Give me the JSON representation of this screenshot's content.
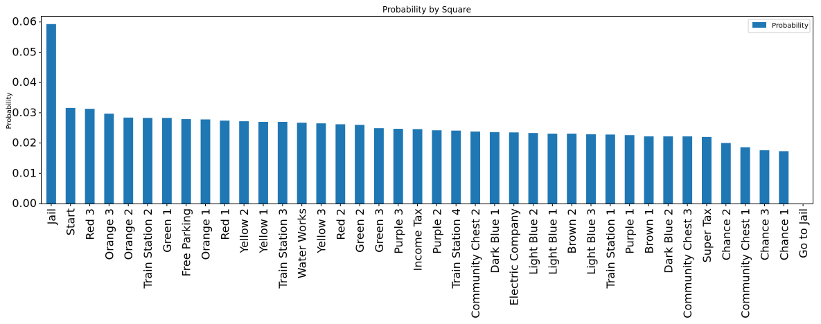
{
  "chart_data": {
    "type": "bar",
    "title": "Probability by Square",
    "xlabel": "",
    "ylabel": "Probability",
    "ylim": [
      0,
      0.062
    ],
    "yticks": [
      "0.00",
      "0.01",
      "0.02",
      "0.03",
      "0.04",
      "0.05",
      "0.06"
    ],
    "legend": {
      "position": "top-right",
      "entries": [
        "Probability"
      ]
    },
    "color": "#1f77b4",
    "grid": false,
    "categories": [
      "Jail",
      "Start",
      "Red 3",
      "Orange 3",
      "Orange 2",
      "Train Station 2",
      "Green 1",
      "Free Parking",
      "Orange 1",
      "Red 1",
      "Yellow 2",
      "Yellow 1",
      "Train Station 3",
      "Water Works",
      "Yellow 3",
      "Red 2",
      "Green 2",
      "Green 3",
      "Purple 3",
      "Income Tax",
      "Purple 2",
      "Train Station 4",
      "Community Chest 2",
      "Dark Blue 1",
      "Electric Company",
      "Light Blue 2",
      "Light Blue 1",
      "Brown 2",
      "Light Blue 3",
      "Train Station 1",
      "Purple 1",
      "Brown 1",
      "Dark Blue 2",
      "Community Chest 3",
      "Super Tax",
      "Chance 2",
      "Community Chest 1",
      "Chance 3",
      "Chance 1",
      "Go to Jail"
    ],
    "series": [
      {
        "name": "Probability",
        "values": [
          0.0593,
          0.0316,
          0.0313,
          0.0297,
          0.0284,
          0.0283,
          0.0283,
          0.0279,
          0.0278,
          0.0274,
          0.0272,
          0.027,
          0.027,
          0.0267,
          0.0265,
          0.0262,
          0.026,
          0.0249,
          0.0247,
          0.0246,
          0.0242,
          0.0241,
          0.0238,
          0.0236,
          0.0235,
          0.0233,
          0.0231,
          0.0231,
          0.0229,
          0.0228,
          0.0226,
          0.0222,
          0.0222,
          0.0222,
          0.022,
          0.02,
          0.0186,
          0.0176,
          0.0173,
          0.0
        ]
      }
    ]
  }
}
